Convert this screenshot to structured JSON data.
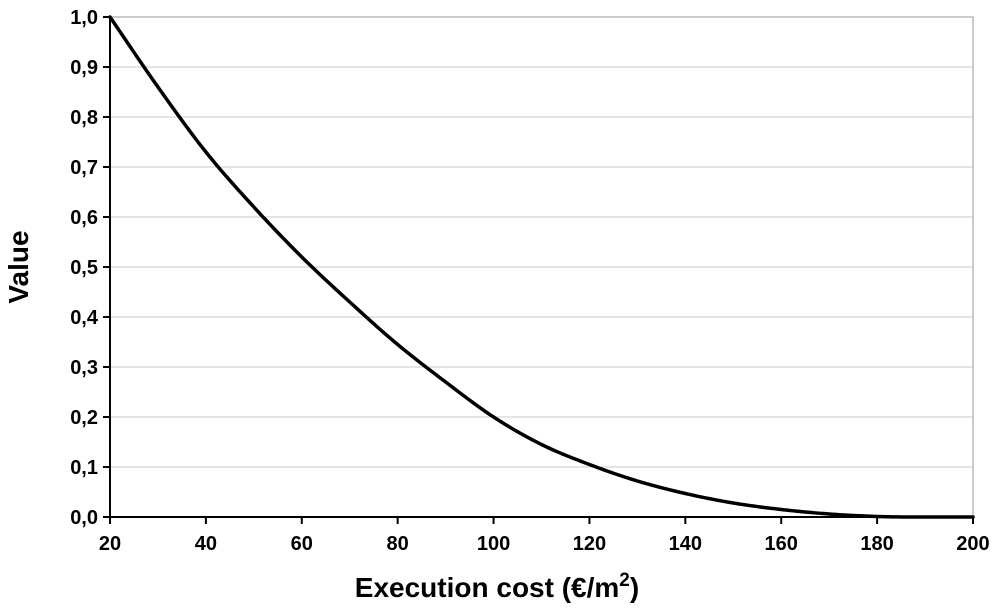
{
  "chart_data": {
    "type": "line",
    "title": "",
    "xlabel_main": "Execution cost (€/m",
    "xlabel_sup": "2",
    "xlabel_close": ")",
    "ylabel": "Value",
    "xlim": [
      20,
      200
    ],
    "ylim": [
      0,
      1
    ],
    "grid": true,
    "x_ticks": [
      {
        "value": 20,
        "label": "20"
      },
      {
        "value": 40,
        "label": "40"
      },
      {
        "value": 60,
        "label": "60"
      },
      {
        "value": 80,
        "label": "80"
      },
      {
        "value": 100,
        "label": "100"
      },
      {
        "value": 120,
        "label": "120"
      },
      {
        "value": 140,
        "label": "140"
      },
      {
        "value": 160,
        "label": "160"
      },
      {
        "value": 180,
        "label": "180"
      },
      {
        "value": 200,
        "label": "200"
      }
    ],
    "y_ticks": [
      {
        "value": 0.0,
        "label": "0,0"
      },
      {
        "value": 0.1,
        "label": "0,1"
      },
      {
        "value": 0.2,
        "label": "0,2"
      },
      {
        "value": 0.3,
        "label": "0,3"
      },
      {
        "value": 0.4,
        "label": "0,4"
      },
      {
        "value": 0.5,
        "label": "0,5"
      },
      {
        "value": 0.6,
        "label": "0,6"
      },
      {
        "value": 0.7,
        "label": "0,7"
      },
      {
        "value": 0.8,
        "label": "0,8"
      },
      {
        "value": 0.9,
        "label": "0,9"
      },
      {
        "value": 1.0,
        "label": "1,0"
      }
    ],
    "series": [
      {
        "color": "#000000",
        "x": [
          20,
          30,
          40,
          50,
          60,
          70,
          80,
          90,
          100,
          110,
          120,
          130,
          140,
          150,
          160,
          170,
          180,
          190,
          200
        ],
        "y": [
          1.0,
          0.86,
          0.73,
          0.62,
          0.52,
          0.43,
          0.345,
          0.27,
          0.2,
          0.145,
          0.105,
          0.072,
          0.047,
          0.028,
          0.015,
          0.006,
          0.001,
          0.0,
          0.0
        ]
      }
    ]
  }
}
